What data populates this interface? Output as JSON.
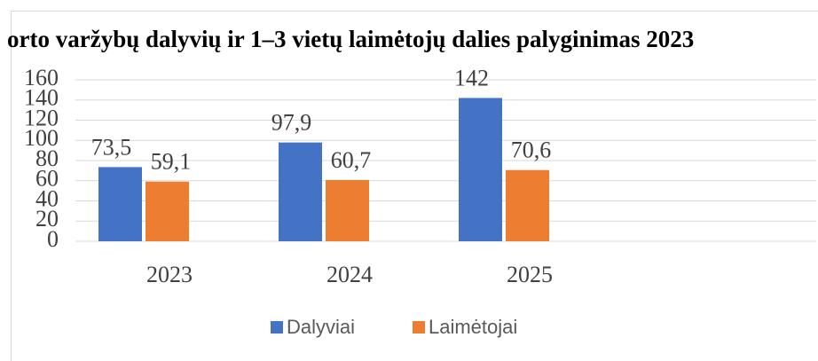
{
  "chart_data": {
    "type": "bar",
    "title": "orto varžybų dalyvių ir 1–3 vietų laimėtojų dalies palyginimas 2023",
    "categories": [
      "2023",
      "2024",
      "2025"
    ],
    "series": [
      {
        "name": "Dalyviai",
        "color": "#4472c4",
        "values": [
          73.5,
          97.9,
          142
        ],
        "value_labels": [
          "73,5",
          "97,9",
          "142"
        ]
      },
      {
        "name": "Laimėtojai",
        "color": "#ed7d31",
        "values": [
          59.1,
          60.7,
          70.6
        ],
        "value_labels": [
          "59,1",
          "60,7",
          "70,6"
        ]
      }
    ],
    "ylim": [
      0,
      160
    ],
    "yticks": [
      0,
      20,
      40,
      60,
      80,
      100,
      120,
      140,
      160
    ],
    "grid": true,
    "legend": "bottom"
  }
}
